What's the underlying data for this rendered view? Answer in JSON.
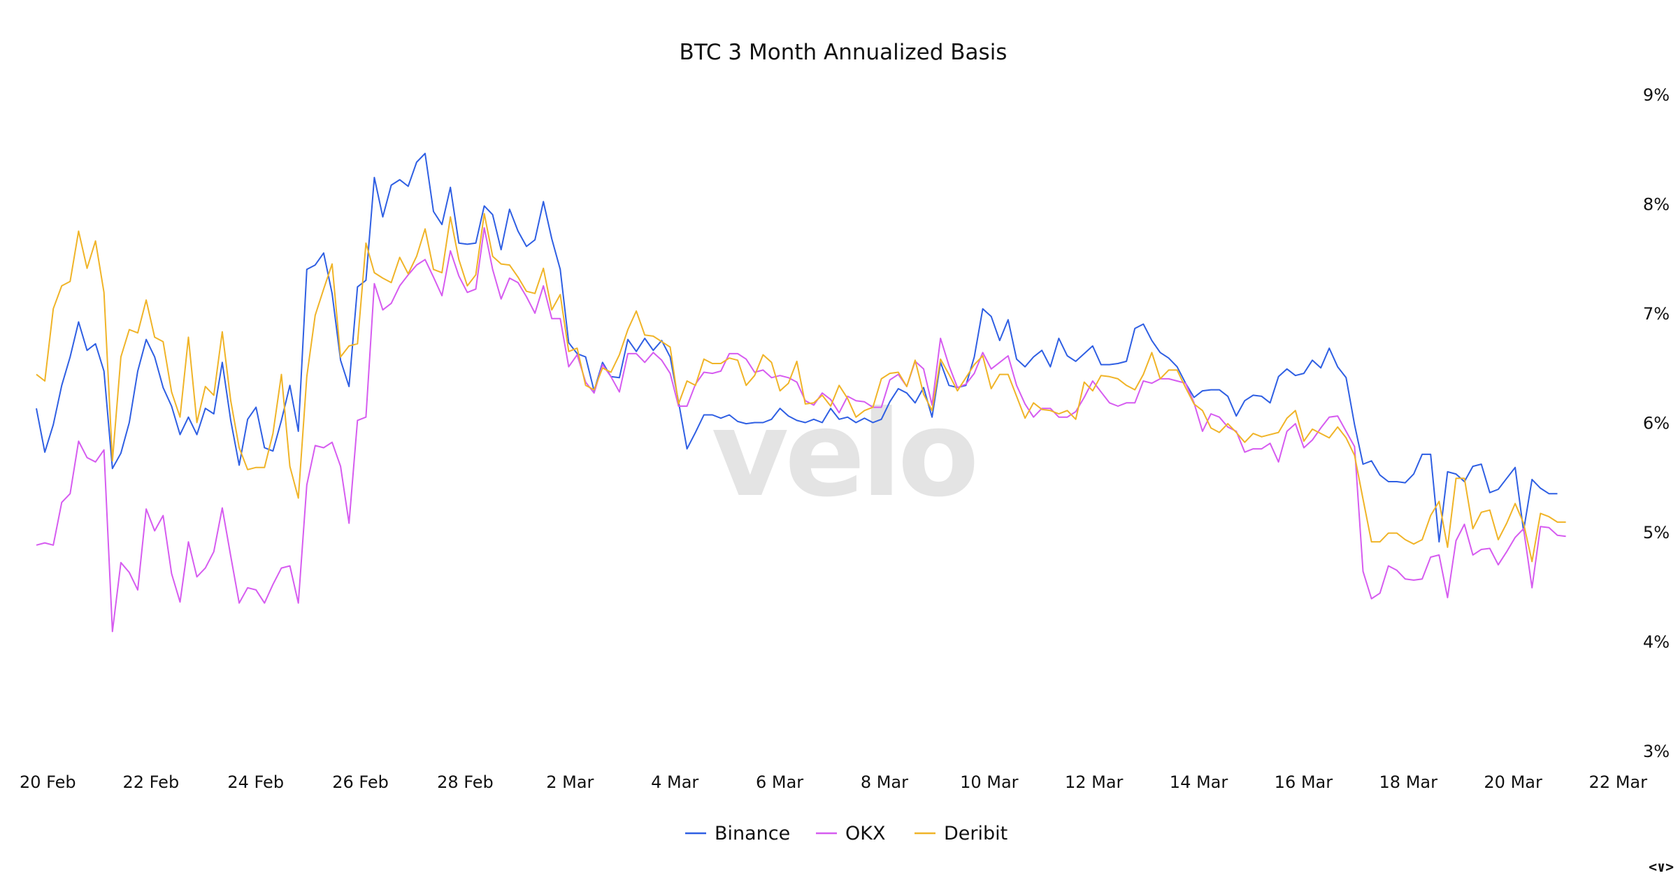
{
  "chart_data": {
    "type": "line",
    "title": "BTC 3 Month Annualized Basis",
    "xlabel": "",
    "ylabel": "",
    "ylim": [
      3,
      9
    ],
    "y_ticks": [
      "3%",
      "4%",
      "5%",
      "6%",
      "7%",
      "8%",
      "9%"
    ],
    "x_ticks": [
      "20 Feb",
      "22 Feb",
      "24 Feb",
      "26 Feb",
      "28 Feb",
      "2 Mar",
      "4 Mar",
      "6 Mar",
      "8 Mar",
      "10 Mar",
      "12 Mar",
      "14 Mar",
      "16 Mar",
      "18 Mar",
      "20 Mar",
      "22 Mar"
    ],
    "x_start": "2024-02-20",
    "x_end": "2024-03-22",
    "step_hours": 4,
    "grid": false,
    "legend_position": "bottom-center",
    "watermark": "velo",
    "series": [
      {
        "name": "Binance",
        "color": "#2f5fe3",
        "values": [
          6.13,
          5.73,
          5.98,
          6.34,
          6.6,
          6.92,
          6.66,
          6.72,
          6.47,
          5.58,
          5.72,
          6.0,
          6.47,
          6.76,
          6.6,
          6.32,
          6.15,
          5.89,
          6.05,
          5.89,
          6.13,
          6.08,
          6.55,
          6.02,
          5.61,
          6.03,
          6.14,
          5.77,
          5.74,
          6.02,
          6.34,
          5.92,
          7.4,
          7.44,
          7.55,
          7.18,
          6.57,
          6.33,
          7.24,
          7.3,
          8.24,
          7.88,
          8.17,
          8.22,
          8.16,
          8.38,
          8.46,
          7.93,
          7.81,
          8.15,
          7.64,
          7.63,
          7.64,
          7.98,
          7.9,
          7.58,
          7.95,
          7.75,
          7.61,
          7.67,
          8.02,
          7.68,
          7.4,
          6.73,
          6.63,
          6.6,
          6.29,
          6.55,
          6.42,
          6.41,
          6.76,
          6.65,
          6.77,
          6.66,
          6.75,
          6.6,
          6.19,
          5.76,
          5.91,
          6.07,
          6.07,
          6.04,
          6.07,
          6.01,
          5.99,
          6.0,
          6.0,
          6.03,
          6.13,
          6.06,
          6.02,
          6.0,
          6.03,
          6.0,
          6.13,
          6.03,
          6.05,
          6.0,
          6.04,
          6.0,
          6.03,
          6.19,
          6.31,
          6.27,
          6.18,
          6.32,
          6.05,
          6.55,
          6.34,
          6.32,
          6.34,
          6.6,
          7.04,
          6.97,
          6.75,
          6.94,
          6.58,
          6.51,
          6.6,
          6.66,
          6.51,
          6.77,
          6.61,
          6.56,
          6.63,
          6.7,
          6.53,
          6.53,
          6.54,
          6.56,
          6.86,
          6.9,
          6.75,
          6.64,
          6.59,
          6.51,
          6.36,
          6.23,
          6.29,
          6.3,
          6.3,
          6.24,
          6.06,
          6.2,
          6.25,
          6.24,
          6.18,
          6.42,
          6.49,
          6.43,
          6.45,
          6.57,
          6.5,
          6.68,
          6.51,
          6.41,
          5.98,
          5.62,
          5.65,
          5.52,
          5.46,
          5.46,
          5.45,
          5.53,
          5.71,
          5.71,
          4.91,
          5.55,
          5.53,
          5.46,
          5.6,
          5.62,
          5.36,
          5.39,
          5.49,
          5.59,
          5.01,
          5.48,
          5.4,
          5.35,
          5.35
        ]
      },
      {
        "name": "OKX",
        "color": "#d65cf0",
        "values": [
          4.88,
          4.9,
          4.88,
          5.27,
          5.35,
          5.83,
          5.68,
          5.64,
          5.75,
          4.09,
          4.72,
          4.63,
          4.47,
          5.21,
          5.01,
          5.15,
          4.62,
          4.36,
          4.91,
          4.59,
          4.67,
          4.82,
          5.22,
          4.78,
          4.35,
          4.49,
          4.47,
          4.35,
          4.52,
          4.67,
          4.69,
          4.35,
          5.43,
          5.79,
          5.77,
          5.82,
          5.6,
          5.08,
          6.02,
          6.05,
          7.27,
          7.03,
          7.09,
          7.25,
          7.35,
          7.44,
          7.49,
          7.33,
          7.16,
          7.57,
          7.34,
          7.19,
          7.22,
          7.78,
          7.4,
          7.13,
          7.32,
          7.28,
          7.15,
          7.0,
          7.25,
          6.95,
          6.95,
          6.51,
          6.62,
          6.37,
          6.27,
          6.53,
          6.42,
          6.28,
          6.63,
          6.63,
          6.55,
          6.64,
          6.57,
          6.45,
          6.15,
          6.15,
          6.35,
          6.46,
          6.45,
          6.47,
          6.63,
          6.63,
          6.58,
          6.46,
          6.48,
          6.41,
          6.43,
          6.41,
          6.37,
          6.2,
          6.16,
          6.27,
          6.21,
          6.09,
          6.24,
          6.2,
          6.19,
          6.14,
          6.14,
          6.39,
          6.44,
          6.33,
          6.56,
          6.49,
          6.16,
          6.77,
          6.52,
          6.32,
          6.35,
          6.45,
          6.64,
          6.49,
          6.55,
          6.61,
          6.34,
          6.17,
          6.05,
          6.13,
          6.13,
          6.05,
          6.05,
          6.1,
          6.23,
          6.38,
          6.28,
          6.18,
          6.15,
          6.18,
          6.18,
          6.38,
          6.36,
          6.4,
          6.4,
          6.38,
          6.36,
          6.18,
          5.92,
          6.08,
          6.05,
          5.96,
          5.92,
          5.73,
          5.76,
          5.76,
          5.81,
          5.64,
          5.92,
          5.99,
          5.77,
          5.84,
          5.95,
          6.05,
          6.06,
          5.92,
          5.78,
          4.64,
          4.39,
          4.44,
          4.69,
          4.65,
          4.57,
          4.56,
          4.57,
          4.77,
          4.79,
          4.4,
          4.92,
          5.07,
          4.79,
          4.84,
          4.85,
          4.7,
          4.82,
          4.95,
          5.03,
          4.49,
          5.05,
          5.04,
          4.97,
          4.96
        ]
      },
      {
        "name": "Deribit",
        "color": "#f0b428",
        "values": [
          6.44,
          6.38,
          7.04,
          7.25,
          7.29,
          7.75,
          7.41,
          7.66,
          7.19,
          5.65,
          6.6,
          6.85,
          6.82,
          7.12,
          6.78,
          6.74,
          6.28,
          6.05,
          6.78,
          6.0,
          6.33,
          6.25,
          6.83,
          6.2,
          5.77,
          5.57,
          5.59,
          5.59,
          5.9,
          6.44,
          5.6,
          5.31,
          6.42,
          6.98,
          7.22,
          7.45,
          6.6,
          6.7,
          6.72,
          7.64,
          7.37,
          7.32,
          7.28,
          7.51,
          7.36,
          7.52,
          7.77,
          7.4,
          7.37,
          7.88,
          7.49,
          7.25,
          7.35,
          7.91,
          7.52,
          7.45,
          7.44,
          7.33,
          7.2,
          7.18,
          7.41,
          7.03,
          7.17,
          6.65,
          6.68,
          6.34,
          6.3,
          6.5,
          6.46,
          6.62,
          6.85,
          7.02,
          6.8,
          6.79,
          6.74,
          6.69,
          6.17,
          6.38,
          6.34,
          6.58,
          6.54,
          6.54,
          6.59,
          6.57,
          6.34,
          6.43,
          6.62,
          6.55,
          6.29,
          6.36,
          6.56,
          6.17,
          6.18,
          6.25,
          6.15,
          6.34,
          6.22,
          6.05,
          6.11,
          6.14,
          6.4,
          6.45,
          6.46,
          6.33,
          6.57,
          6.26,
          6.11,
          6.58,
          6.44,
          6.29,
          6.41,
          6.53,
          6.61,
          6.31,
          6.44,
          6.44,
          6.24,
          6.04,
          6.18,
          6.12,
          6.11,
          6.08,
          6.11,
          6.03,
          6.37,
          6.29,
          6.43,
          6.42,
          6.4,
          6.34,
          6.3,
          6.44,
          6.64,
          6.4,
          6.48,
          6.48,
          6.32,
          6.17,
          6.11,
          5.95,
          5.91,
          5.99,
          5.91,
          5.82,
          5.9,
          5.87,
          5.89,
          5.91,
          6.04,
          6.11,
          5.83,
          5.94,
          5.9,
          5.86,
          5.96,
          5.86,
          5.7,
          5.3,
          4.91,
          4.91,
          4.99,
          4.99,
          4.93,
          4.89,
          4.93,
          5.15,
          5.28,
          4.86,
          5.49,
          5.49,
          5.03,
          5.18,
          5.2,
          4.93,
          5.08,
          5.26,
          5.08,
          4.73,
          5.17,
          5.14,
          5.09,
          5.09
        ]
      }
    ]
  }
}
